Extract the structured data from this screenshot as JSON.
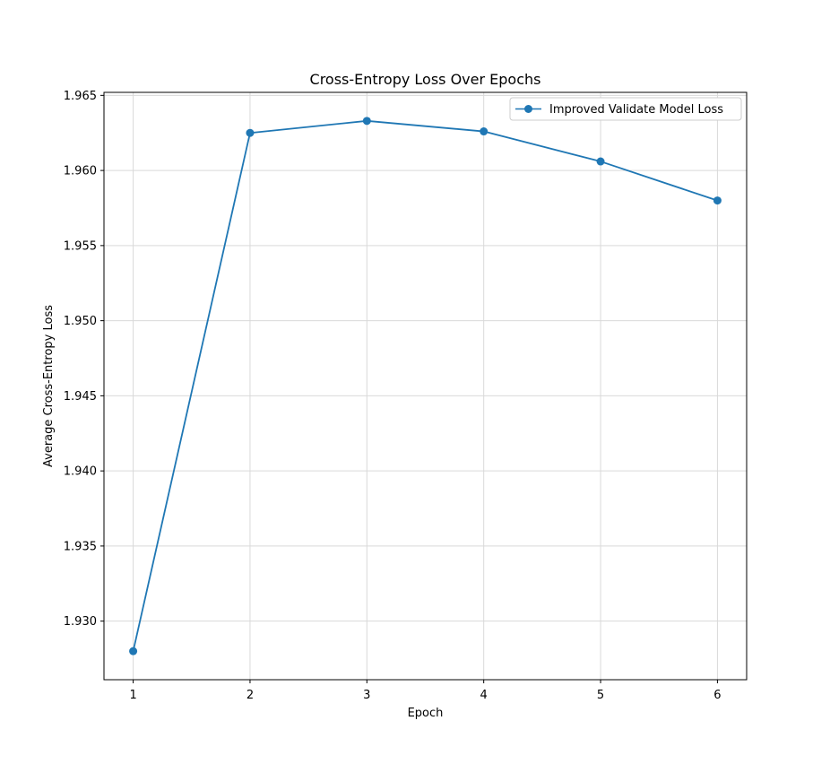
{
  "chart_data": {
    "type": "line",
    "title": "Cross-Entropy Loss Over Epochs",
    "xlabel": "Epoch",
    "ylabel": "Average Cross-Entropy Loss",
    "x": [
      1,
      2,
      3,
      4,
      5,
      6
    ],
    "series": [
      {
        "name": "Improved Validate Model Loss",
        "values": [
          1.928,
          1.9625,
          1.9633,
          1.9626,
          1.9606,
          1.958
        ],
        "color": "#1f77b4",
        "marker": "circle"
      }
    ],
    "xlim": [
      0.75,
      6.25
    ],
    "ylim": [
      1.9261,
      1.9652
    ],
    "xticks": [
      1,
      2,
      3,
      4,
      5,
      6
    ],
    "yticks": [
      1.93,
      1.935,
      1.94,
      1.945,
      1.95,
      1.955,
      1.96,
      1.965
    ],
    "xtick_labels": [
      "1",
      "2",
      "3",
      "4",
      "5",
      "6"
    ],
    "ytick_labels": [
      "1.930",
      "1.935",
      "1.940",
      "1.945",
      "1.950",
      "1.955",
      "1.960",
      "1.965"
    ],
    "grid": true,
    "legend_position": "upper-right"
  }
}
